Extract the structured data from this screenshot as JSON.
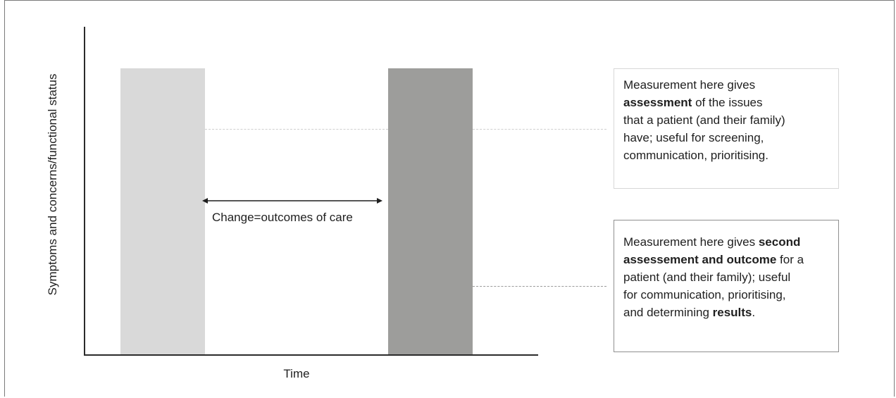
{
  "diagram": {
    "y_axis_label": "Symptoms and concerns/functional status",
    "x_axis_label": "Time",
    "change_label": "Change=outcomes of care",
    "colors": {
      "bar_before": "#d9d9d9",
      "bar_after": "#9d9d9b",
      "axis": "#2b2b2b",
      "callout_one_border": "#d7d7d7",
      "callout_two_border": "#8f8f8f"
    },
    "callout_one": {
      "line1": "Measurement here gives",
      "line2_bold": "assessment",
      "line2_rest": " of the issues",
      "line3": "that a patient (and their family)",
      "line4": "have; useful for screening,",
      "line5": "communication, prioritising."
    },
    "callout_two": {
      "line1_start": "Measurement here gives ",
      "line1_bold": "second",
      "line2_bold": "assessement and outcome",
      "line2_rest": " for a",
      "line3": "patient (and their family); useful",
      "line4": "for communication, prioritising,",
      "line5_start": "and determining ",
      "line5_bold": "results",
      "line5_end": "."
    }
  }
}
